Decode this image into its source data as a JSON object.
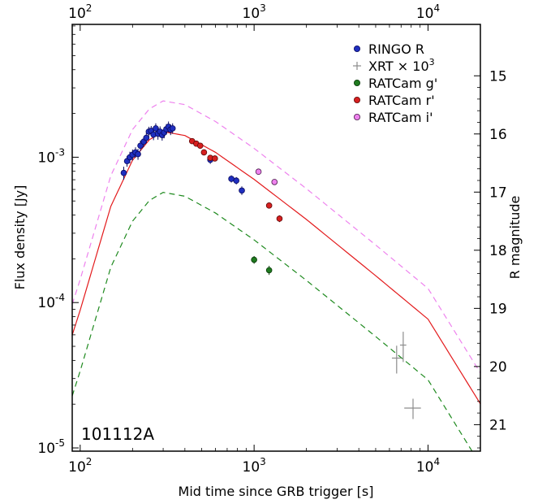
{
  "chart_data": {
    "type": "scatter",
    "title": "",
    "annotation": "101112A",
    "xlabel": "Mid time since GRB trigger [s]",
    "ylabel": "Flux density [Jy]",
    "y2label": "R magnitude",
    "xscale": "log",
    "yscale": "log",
    "xlim": [
      90,
      20000
    ],
    "ylim": [
      9.5e-06,
      0.0082
    ],
    "grid": false,
    "legend_position": "top-right",
    "x_ticks": [
      {
        "value": 100,
        "base": "10",
        "exp": "2"
      },
      {
        "value": 1000,
        "base": "10",
        "exp": "3"
      },
      {
        "value": 10000,
        "base": "10",
        "exp": "4"
      }
    ],
    "y_ticks": [
      {
        "value": 1e-05,
        "base": "10",
        "exp": "-5"
      },
      {
        "value": 0.0001,
        "base": "10",
        "exp": "-4"
      },
      {
        "value": 0.001,
        "base": "10",
        "exp": "-3"
      }
    ],
    "y2_ticks": [
      {
        "mag": 15,
        "label": "15"
      },
      {
        "mag": 16,
        "label": "16"
      },
      {
        "mag": 17,
        "label": "17"
      },
      {
        "mag": 18,
        "label": "18"
      },
      {
        "mag": 19,
        "label": "19"
      },
      {
        "mag": 20,
        "label": "20"
      },
      {
        "mag": 21,
        "label": "21"
      }
    ],
    "series": [
      {
        "name": "RINGO R",
        "marker": "circle",
        "color": "#1f2fbf",
        "edge": "#0a0a60",
        "x": [
          178,
          186,
          193,
          200,
          208,
          215,
          222,
          232,
          240,
          248,
          256,
          264,
          272,
          280,
          288,
          296,
          304,
          313,
          322,
          331,
          340,
          560,
          740,
          790,
          850
        ],
        "y": [
          0.00078,
          0.00094,
          0.001,
          0.00104,
          0.00108,
          0.00105,
          0.0012,
          0.00128,
          0.00136,
          0.0015,
          0.00152,
          0.00143,
          0.00158,
          0.00145,
          0.0015,
          0.00142,
          0.00148,
          0.00156,
          0.00162,
          0.00155,
          0.00158,
          0.00096,
          0.00071,
          0.00069,
          0.00059
        ],
        "yerr": [
          8e-05,
          8e-05,
          9e-05,
          9e-05,
          9e-05,
          9e-05,
          0.0001,
          0.0001,
          0.00011,
          0.00012,
          0.00012,
          0.00012,
          0.00013,
          0.00013,
          0.00013,
          0.00012,
          0.00013,
          0.00013,
          0.00014,
          0.00013,
          0.00013,
          6e-05,
          4e-05,
          4e-05,
          4e-05
        ]
      },
      {
        "name": "XRT × 10",
        "name_exp": "3",
        "marker": "cross",
        "color": "#8c8c8c",
        "x": [
          6600,
          7200,
          8200
        ],
        "y": [
          4.15e-05,
          5.1e-05,
          1.88e-05
        ],
        "xerr": [
          400,
          300,
          900
        ],
        "yerr": [
          9e-06,
          1.2e-05,
          3e-06
        ]
      },
      {
        "name": "RATCam g'",
        "marker": "circle",
        "color": "#1f7a1f",
        "edge": "#0a3a0a",
        "x": [
          1000,
          1220
        ],
        "y": [
          0.000197,
          0.000167
        ],
        "yerr": [
          1.2e-05,
          1.2e-05
        ]
      },
      {
        "name": "RATCam r'",
        "marker": "circle",
        "color": "#d62020",
        "edge": "#600a0a",
        "x": [
          440,
          465,
          490,
          515,
          560,
          595,
          1220,
          1400
        ],
        "y": [
          0.00129,
          0.00124,
          0.0012,
          0.00108,
          0.00099,
          0.00098,
          0.000465,
          0.000378
        ],
        "yerr": [
          5e-05,
          5e-05,
          5e-05,
          5e-05,
          4e-05,
          4e-05,
          2e-05,
          2e-05
        ]
      },
      {
        "name": "RATCam i'",
        "marker": "circle",
        "color": "#ee82ee",
        "edge": "#4a1a4a",
        "x": [
          1060,
          1310
        ],
        "y": [
          0.000795,
          0.000675
        ],
        "yerr": [
          3e-05,
          3e-05
        ]
      }
    ],
    "models": [
      {
        "color": "#e31a1c",
        "dash": "solid",
        "x": [
          90,
          100,
          150,
          200,
          250,
          300,
          400,
          600,
          1000,
          2000,
          5000,
          10000,
          20000
        ],
        "y": [
          5.98e-05,
          8.86e-05,
          0.000459,
          0.000954,
          0.00132,
          0.0015,
          0.00141,
          0.00108,
          0.000704,
          0.000373,
          0.000153,
          7.69e-05,
          2.01e-05
        ]
      },
      {
        "color": "#ee82ee",
        "dash": "dashed",
        "x": [
          90,
          100,
          150,
          200,
          250,
          300,
          400,
          600,
          1000,
          2000,
          5000,
          10000,
          20000
        ],
        "y": [
          9.74e-05,
          0.000144,
          0.000746,
          0.00155,
          0.00215,
          0.00244,
          0.0023,
          0.00176,
          0.00115,
          0.000607,
          0.000249,
          0.000125,
          3.28e-05
        ]
      },
      {
        "color": "#1f8a1f",
        "dash": "dashed",
        "x": [
          90,
          100,
          150,
          200,
          250,
          300,
          400,
          600,
          1000,
          2000,
          5000,
          10000,
          20000
        ],
        "y": [
          2.28e-05,
          3.38e-05,
          0.000175,
          0.000363,
          0.000504,
          0.000573,
          0.000539,
          0.000413,
          0.00027,
          0.000142,
          5.84e-05,
          2.94e-05,
          7.67e-06
        ]
      }
    ]
  }
}
